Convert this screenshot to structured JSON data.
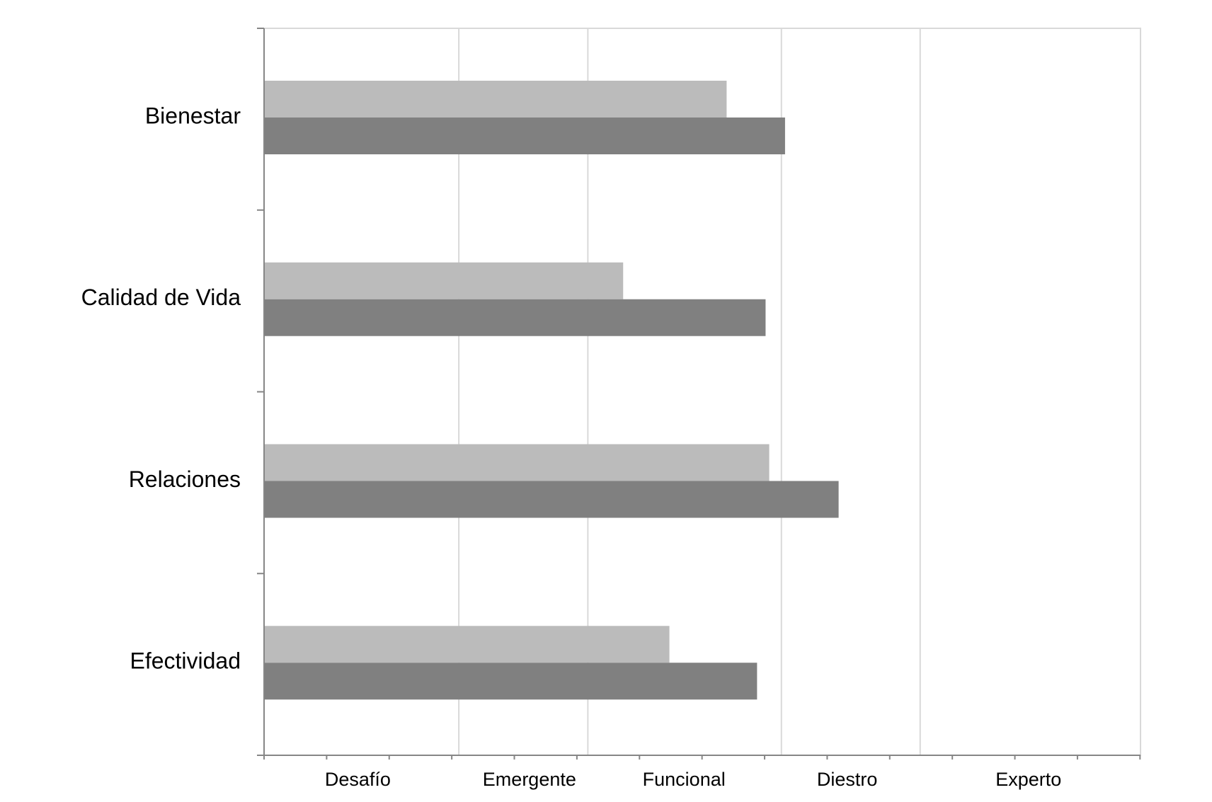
{
  "chart_data": {
    "type": "bar",
    "orientation": "horizontal",
    "title": "",
    "xlabel": "",
    "ylabel": "",
    "categories": [
      "Bienestar",
      "Calidad de Vida",
      "Relaciones",
      "Efectividad"
    ],
    "series": [
      {
        "values": [
          3.8,
          2.95,
          4.15,
          3.33
        ],
        "color": "#bbbbbb"
      },
      {
        "values": [
          4.28,
          4.12,
          4.72,
          4.05
        ],
        "color": "#808080"
      }
    ],
    "xlim": [
      0,
      7.2
    ],
    "x_tick_labels": [
      {
        "label": "Desafío",
        "value": 0.77
      },
      {
        "label": "Emergente",
        "value": 2.18
      },
      {
        "label": "Funcional",
        "value": 3.45
      },
      {
        "label": "Diestro",
        "value": 4.79
      },
      {
        "label": "Experto",
        "value": 6.28
      }
    ],
    "x_band_boundaries": [
      1.6,
      2.66,
      4.25,
      5.39
    ],
    "minor_tick_step": 0.514,
    "grid": "vertical lines at band boundaries",
    "legend": "none",
    "colors": {
      "axis": "#868686",
      "gridline": "#d9d9d9",
      "plot_border": "#d9d9d9"
    }
  }
}
